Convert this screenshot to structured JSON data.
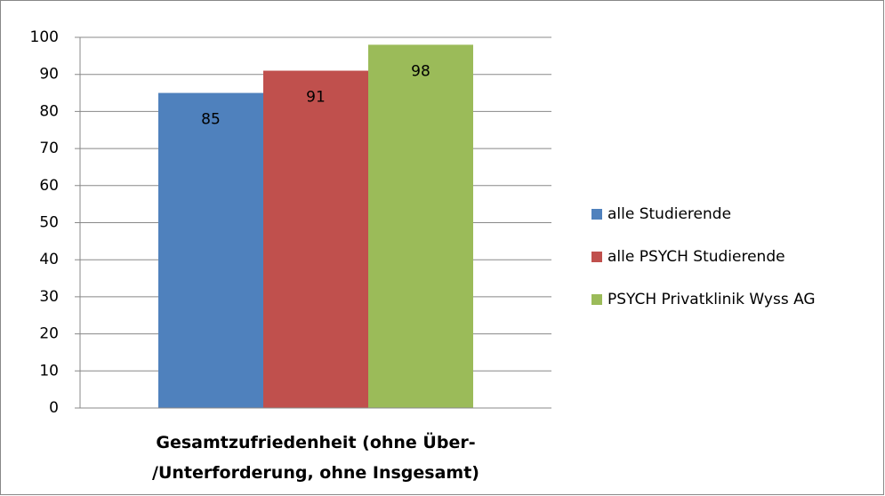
{
  "chart_data": {
    "type": "bar",
    "categories": [
      "Gesamtzufriedenheit (ohne Über-/Unterforderung, ohne Insgesamt)"
    ],
    "series": [
      {
        "name": "alle Studierende",
        "color": "#4f81bd",
        "values": [
          85
        ]
      },
      {
        "name": "alle PSYCH Studierende",
        "color": "#c0504d",
        "values": [
          91
        ]
      },
      {
        "name": "PSYCH Privatklinik Wyss AG",
        "color": "#9bbb59",
        "values": [
          98
        ]
      }
    ],
    "ylim": [
      0,
      100
    ],
    "yticks": [
      0,
      10,
      20,
      30,
      40,
      50,
      60,
      70,
      80,
      90,
      100
    ],
    "grid": true,
    "legend": "right"
  }
}
